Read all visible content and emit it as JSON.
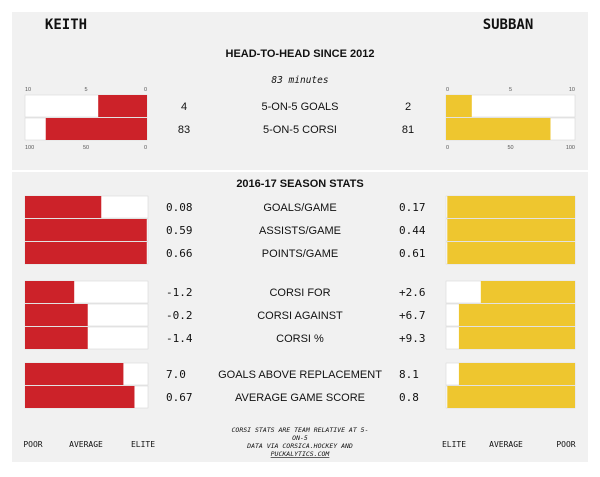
{
  "chart_data": {
    "type": "bar",
    "title": "HEAD-TO-HEAD SINCE 2012",
    "players": {
      "left": "KEITH",
      "right": "SUBBAN"
    },
    "colors": {
      "left": "#cc2229",
      "right": "#eec62f",
      "panel": "#f1f1f1",
      "text": "#111111"
    },
    "head_to_head": {
      "minutes_label": "83 minutes",
      "rows": [
        {
          "label": "5-ON-5 GOALS",
          "left": 4,
          "right": 2,
          "left_display": "4",
          "right_display": "2",
          "scale": [
            0,
            10
          ],
          "ticks": [
            "10",
            "5",
            "0"
          ],
          "ticks_right": [
            "0",
            "5",
            "10"
          ]
        },
        {
          "label": "5-ON-5 CORSI",
          "left": 83,
          "right": 81,
          "left_display": "83",
          "right_display": "81",
          "scale": [
            0,
            100
          ],
          "ticks": [
            "100",
            "50",
            "0"
          ],
          "ticks_right": [
            "0",
            "50",
            "100"
          ]
        }
      ]
    },
    "season": {
      "title": "2016-17 SEASON STATS",
      "groups": [
        {
          "rows": [
            {
              "label": "GOALS/GAME",
              "left_display": "0.08",
              "right_display": "0.17",
              "left_level": 0.62,
              "right_level": 0.99
            },
            {
              "label": "ASSISTS/GAME",
              "left_display": "0.59",
              "right_display": "0.44",
              "left_level": 0.99,
              "right_level": 0.99
            },
            {
              "label": "POINTS/GAME",
              "left_display": "0.66",
              "right_display": "0.61",
              "left_level": 0.99,
              "right_level": 0.99
            }
          ]
        },
        {
          "rows": [
            {
              "label": "CORSI FOR",
              "left_display": "-1.2",
              "right_display": "+2.6",
              "left_level": 0.4,
              "right_level": 0.73
            },
            {
              "label": "CORSI AGAINST",
              "left_display": "-0.2",
              "right_display": "+6.7",
              "left_level": 0.51,
              "right_level": 0.9
            },
            {
              "label": "CORSI %",
              "left_display": "-1.4",
              "right_display": "+9.3",
              "left_level": 0.51,
              "right_level": 0.9
            }
          ]
        },
        {
          "rows": [
            {
              "label": "GOALS ABOVE REPLACEMENT",
              "left_display": "7.0",
              "right_display": "8.1",
              "left_level": 0.8,
              "right_level": 0.9
            },
            {
              "label": "AVERAGE GAME SCORE",
              "left_display": "0.67",
              "right_display": "0.8",
              "left_level": 0.89,
              "right_level": 0.99
            }
          ]
        }
      ]
    },
    "scale_labels_left": [
      "POOR",
      "AVERAGE",
      "ELITE"
    ],
    "scale_labels_right": [
      "ELITE",
      "AVERAGE",
      "POOR"
    ],
    "footnote": {
      "line1": "CORSI STATS ARE TEAM RELATIVE AT 5-",
      "line2": "ON-5",
      "line3": "DATA VIA CORSICA.HOCKEY AND",
      "line4": "PUCKALYTICS.COM"
    }
  }
}
